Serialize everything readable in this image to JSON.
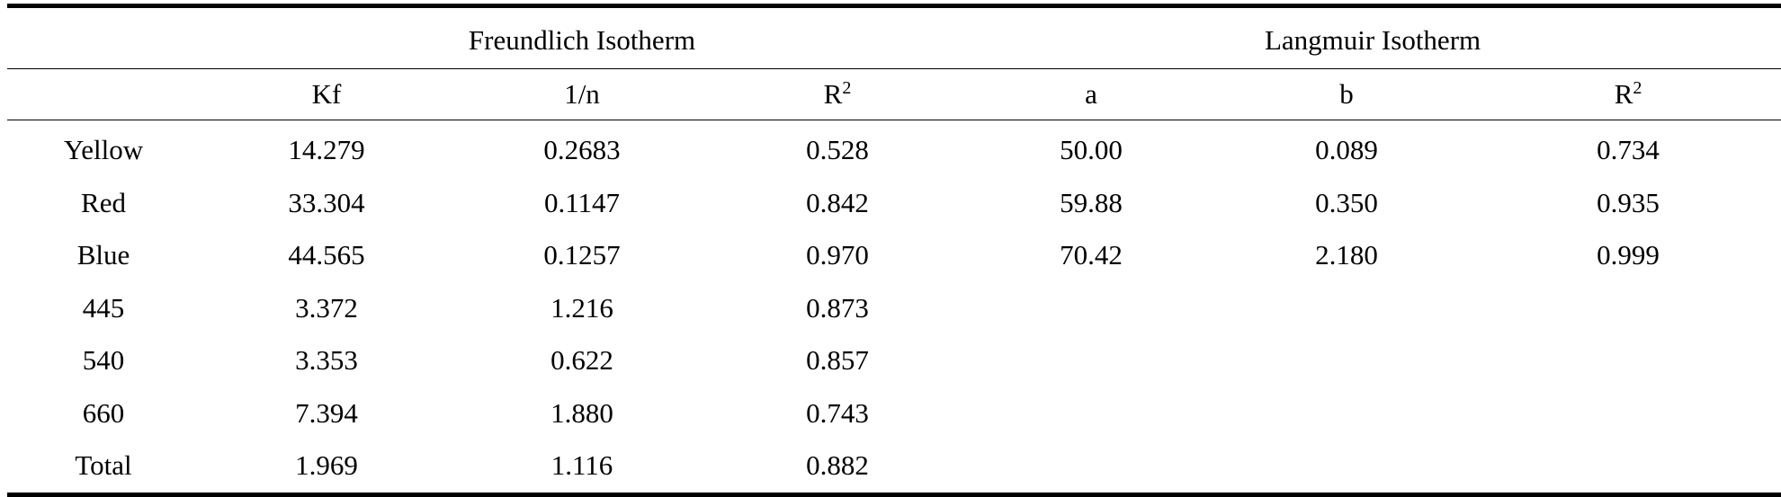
{
  "table": {
    "groups": {
      "freundlich": "Freundlich Isotherm",
      "langmuir": "Langmuir Isotherm"
    },
    "subheaders": {
      "kf": "Kf",
      "one_over_n": "1/n",
      "r2_freundlich_base": "R",
      "r2_freundlich_sup": "2",
      "a": "a",
      "b": "b",
      "r2_langmuir_base": "R",
      "r2_langmuir_sup": "2"
    },
    "rows": [
      {
        "label": "Yellow",
        "kf": "14.279",
        "n": "0.2683",
        "r2f": "0.528",
        "a": "50.00",
        "b": "0.089",
        "r2l": "0.734"
      },
      {
        "label": "Red",
        "kf": "33.304",
        "n": "0.1147",
        "r2f": "0.842",
        "a": "59.88",
        "b": "0.350",
        "r2l": "0.935"
      },
      {
        "label": "Blue",
        "kf": "44.565",
        "n": "0.1257",
        "r2f": "0.970",
        "a": "70.42",
        "b": "2.180",
        "r2l": "0.999"
      },
      {
        "label": "445",
        "kf": "3.372",
        "n": "1.216",
        "r2f": "0.873",
        "a": "",
        "b": "",
        "r2l": ""
      },
      {
        "label": "540",
        "kf": "3.353",
        "n": "0.622",
        "r2f": "0.857",
        "a": "",
        "b": "",
        "r2l": ""
      },
      {
        "label": "660",
        "kf": "7.394",
        "n": "1.880",
        "r2f": "0.743",
        "a": "",
        "b": "",
        "r2l": ""
      },
      {
        "label": "Total",
        "kf": "1.969",
        "n": "1.116",
        "r2f": "0.882",
        "a": "",
        "b": "",
        "r2l": ""
      }
    ]
  }
}
